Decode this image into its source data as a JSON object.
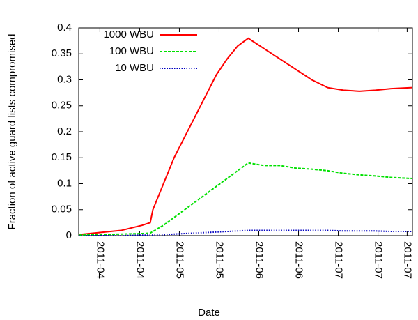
{
  "chart_data": {
    "type": "line",
    "x_label": "Date",
    "y_label": "Fraction of active guard lists compromised",
    "x": [
      0,
      8,
      16,
      24,
      27,
      28,
      32,
      36,
      40,
      44,
      48,
      52,
      56,
      60,
      64,
      70,
      76,
      82,
      88,
      94,
      100,
      106,
      112,
      118,
      126
    ],
    "series": [
      {
        "name": "1000 WBU",
        "color": "#ff0000",
        "line_style": "solid",
        "values": [
          0.002,
          0.006,
          0.01,
          0.02,
          0.025,
          0.05,
          0.1,
          0.15,
          0.19,
          0.23,
          0.27,
          0.31,
          0.34,
          0.365,
          0.38,
          0.36,
          0.34,
          0.32,
          0.3,
          0.285,
          0.28,
          0.278,
          0.28,
          0.283,
          0.285
        ]
      },
      {
        "name": "100 WBU",
        "color": "#00e000",
        "line_style": "dashed",
        "values": [
          0.001,
          0.002,
          0.003,
          0.004,
          0.005,
          0.008,
          0.02,
          0.035,
          0.05,
          0.065,
          0.08,
          0.095,
          0.11,
          0.125,
          0.14,
          0.135,
          0.135,
          0.13,
          0.128,
          0.125,
          0.12,
          0.117,
          0.115,
          0.112,
          0.11
        ]
      },
      {
        "name": "10 WBU",
        "color": "#0000c0",
        "line_style": "dotted",
        "values": [
          0,
          0,
          0,
          0.001,
          0.001,
          0.001,
          0.002,
          0.003,
          0.004,
          0.005,
          0.006,
          0.007,
          0.008,
          0.009,
          0.01,
          0.01,
          0.01,
          0.01,
          0.01,
          0.01,
          0.009,
          0.009,
          0.009,
          0.008,
          0.008
        ]
      }
    ],
    "xlim": [
      0,
      126
    ],
    "xticks": [
      {
        "value": 8,
        "label": "2011-04"
      },
      {
        "value": 23,
        "label": "2011-04"
      },
      {
        "value": 38,
        "label": "2011-05"
      },
      {
        "value": 53,
        "label": "2011-05"
      },
      {
        "value": 68,
        "label": "2011-06"
      },
      {
        "value": 83,
        "label": "2011-06"
      },
      {
        "value": 98,
        "label": "2011-07"
      },
      {
        "value": 113,
        "label": "2011-07"
      },
      {
        "value": 124,
        "label": "2011-07"
      }
    ],
    "ylim": [
      0,
      0.4
    ],
    "yticks": [
      0,
      0.05,
      0.1,
      0.15,
      0.2,
      0.25,
      0.3,
      0.35,
      0.4
    ],
    "legend": "top-left"
  }
}
